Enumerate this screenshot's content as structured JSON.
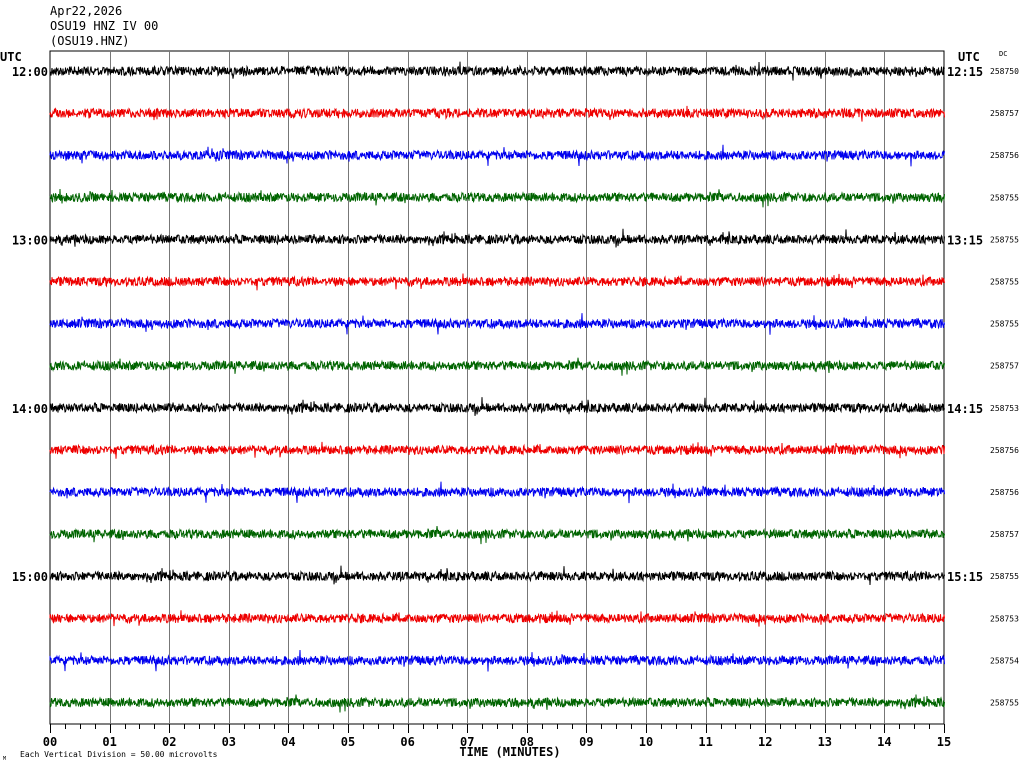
{
  "header": {
    "date": "Apr22,2026",
    "channel": "OSU19 HNZ IV 00",
    "station": "(OSU19.HNZ)"
  },
  "chart_data": {
    "type": "line",
    "title": "",
    "xlabel": "TIME (MINUTES)",
    "left_axis_label": "UTC",
    "right_axis_label": "UTC",
    "right_column_label": "DC",
    "x_ticks": [
      "00",
      "01",
      "02",
      "03",
      "04",
      "05",
      "06",
      "07",
      "08",
      "09",
      "10",
      "11",
      "12",
      "13",
      "14",
      "15"
    ],
    "xlim": [
      0,
      15
    ],
    "left_time_labels": [
      "12:00",
      "13:00",
      "14:00",
      "15:00"
    ],
    "right_time_labels": [
      "12:15",
      "13:15",
      "14:15",
      "15:15"
    ],
    "trace_colors": [
      "#000000",
      "#ee0000",
      "#0000ee",
      "#006400"
    ],
    "dc_values": [
      "258750",
      "258757",
      "258756",
      "258755",
      "258755",
      "258755",
      "258755",
      "258757",
      "258753",
      "258756",
      "258756",
      "258757",
      "258755",
      "258753",
      "258754",
      "258755"
    ],
    "footer_scale": "Each Vertical Division =   50.00 microvolts",
    "footer_mark": "M",
    "grid": true
  }
}
